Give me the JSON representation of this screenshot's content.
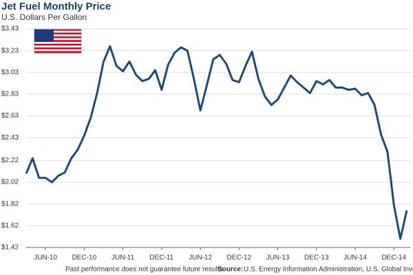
{
  "chart_data": {
    "type": "line",
    "title": "Jet Fuel Monthly Price",
    "subtitle": "U.S. Dollars Per Gallon",
    "footnote": "Past performance does not guarantee future results.",
    "source_label": "Source:",
    "source": "U.S. Energy Information Administration, U.S. Global Investors",
    "categories": [
      null,
      null,
      null,
      "JUN-10",
      null,
      null,
      null,
      null,
      null,
      "DEC-10",
      null,
      null,
      null,
      null,
      null,
      "JUN-11",
      null,
      null,
      null,
      null,
      null,
      "DEC-11",
      null,
      null,
      null,
      null,
      null,
      "JUN-12",
      null,
      null,
      null,
      null,
      null,
      "DEC-12",
      null,
      null,
      null,
      null,
      null,
      "JUN-13",
      null,
      null,
      null,
      null,
      null,
      "DEC-13",
      null,
      null,
      null,
      null,
      null,
      "JUN-14",
      null,
      null,
      null,
      null,
      null,
      "DEC-14",
      null,
      null
    ],
    "series": [
      {
        "name": "Jet Fuel",
        "color": "#1c4a78",
        "values": [
          2.1,
          2.24,
          2.06,
          2.06,
          2.02,
          2.08,
          2.11,
          2.24,
          2.32,
          2.45,
          2.61,
          2.84,
          3.13,
          3.27,
          3.09,
          3.04,
          3.13,
          3.01,
          2.95,
          2.97,
          3.05,
          2.87,
          3.1,
          3.21,
          3.26,
          3.23,
          2.97,
          2.68,
          2.91,
          3.15,
          3.19,
          3.11,
          2.96,
          2.94,
          3.09,
          3.22,
          2.97,
          2.81,
          2.73,
          2.78,
          2.89,
          3.0,
          2.94,
          2.89,
          2.84,
          2.95,
          2.92,
          2.96,
          2.89,
          2.89,
          2.87,
          2.88,
          2.82,
          2.84,
          2.73,
          2.46,
          2.3,
          1.81,
          1.5,
          1.76
        ]
      }
    ],
    "ylim": [
      1.42,
      3.43
    ],
    "yticks": [
      {
        "value": 1.42,
        "label": "$1.42"
      },
      {
        "value": 1.62,
        "label": "$1.62"
      },
      {
        "value": 1.82,
        "label": "$1.82"
      },
      {
        "value": 2.02,
        "label": "$2.02"
      },
      {
        "value": 2.22,
        "label": "$2.22"
      },
      {
        "value": 2.43,
        "label": "$2.43"
      },
      {
        "value": 2.63,
        "label": "$2.63"
      },
      {
        "value": 2.83,
        "label": "$2.83"
      },
      {
        "value": 3.03,
        "label": "$3.03"
      },
      {
        "value": 3.23,
        "label": "$3.23"
      },
      {
        "value": 3.43,
        "label": "$3.43"
      }
    ],
    "grid": true
  }
}
